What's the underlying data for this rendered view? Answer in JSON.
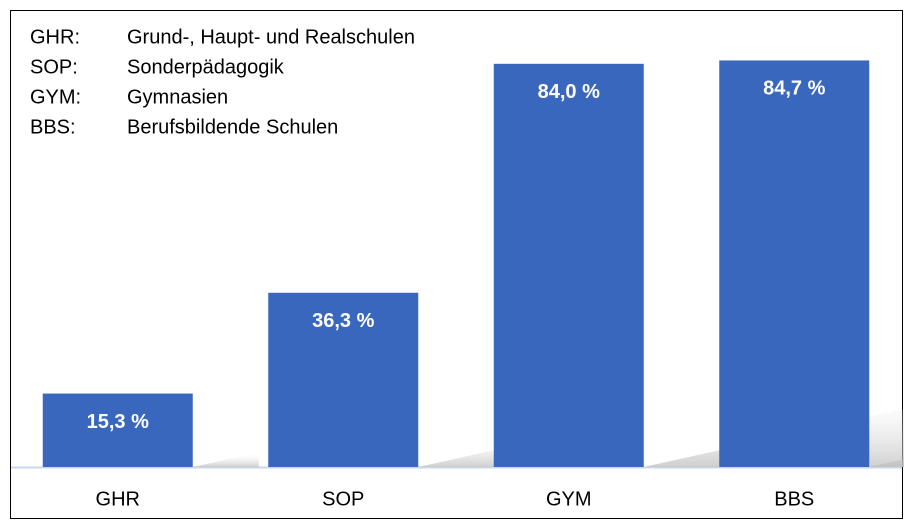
{
  "chart_data": {
    "type": "bar",
    "legend_items": [
      {
        "abbr": "GHR:",
        "text": "Grund-, Haupt- und Realschulen"
      },
      {
        "abbr": "SOP:",
        "text": "Sonderpädagogik"
      },
      {
        "abbr": "GYM:",
        "text": "Gymnasien"
      },
      {
        "abbr": "BBS:",
        "text": "Berufsbildende Schulen"
      }
    ],
    "categories": [
      "GHR",
      "SOP",
      "GYM",
      "BBS"
    ],
    "values": [
      15.3,
      36.3,
      84.0,
      84.7
    ],
    "value_labels": [
      "15,3 %",
      "36,3 %",
      "84,0 %",
      "84,7 %"
    ],
    "color": "#3a67be"
  }
}
